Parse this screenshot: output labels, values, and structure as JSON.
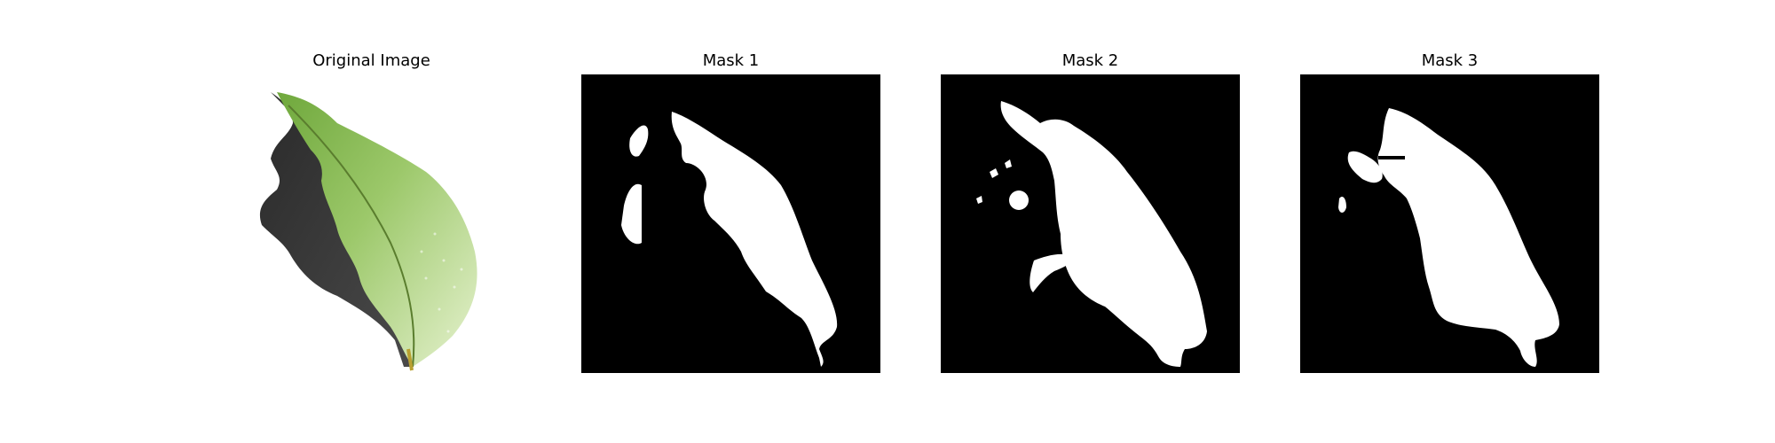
{
  "panels": [
    {
      "title": "Original Image"
    },
    {
      "title": "Mask 1"
    },
    {
      "title": "Mask 2"
    },
    {
      "title": "Mask 3"
    }
  ],
  "colors": {
    "background": "#ffffff",
    "mask_background": "#000000",
    "mask_foreground": "#ffffff",
    "leaf_green": "#8dbb5a",
    "leaf_light": "#d9ecb8",
    "shadow": "#3a3a3a"
  }
}
